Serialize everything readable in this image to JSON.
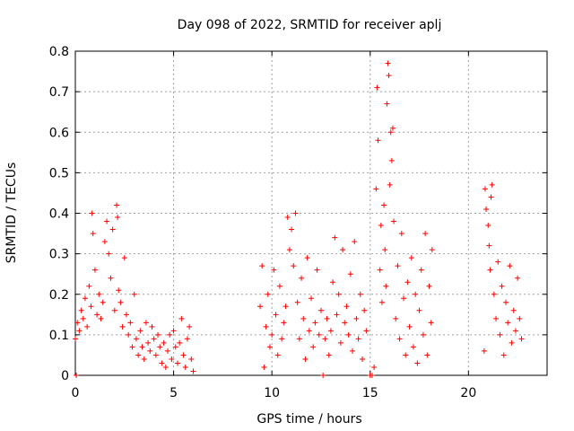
{
  "chart_data": {
    "type": "scatter",
    "title": "Day 098 of 2022, SRMTID for receiver aplj",
    "xlabel": "GPS time / hours",
    "ylabel": "SRMTID / TECUs",
    "xlim": [
      0,
      24
    ],
    "ylim": [
      0,
      0.8
    ],
    "xticks": [
      0,
      5,
      10,
      15,
      20
    ],
    "yticks": [
      0,
      0.1,
      0.2,
      0.3,
      0.4,
      0.5,
      0.6,
      0.7,
      0.8
    ],
    "xtick_labels": [
      "0",
      "5",
      "10",
      "15",
      "20"
    ],
    "ytick_labels": [
      "0",
      "0.1",
      "0.2",
      "0.3",
      "0.4",
      "0.5",
      "0.6",
      "0.7",
      "0.8"
    ],
    "grid": true,
    "marker": "plus",
    "color": "#ff0000",
    "series": [
      {
        "name": "SRMTID",
        "points": [
          [
            0.0,
            0.09
          ],
          [
            0.05,
            0.0
          ],
          [
            0.1,
            0.13
          ],
          [
            0.2,
            0.11
          ],
          [
            0.3,
            0.16
          ],
          [
            0.4,
            0.14
          ],
          [
            0.5,
            0.19
          ],
          [
            0.6,
            0.12
          ],
          [
            0.7,
            0.22
          ],
          [
            0.8,
            0.17
          ],
          [
            0.85,
            0.4
          ],
          [
            0.9,
            0.35
          ],
          [
            1.0,
            0.26
          ],
          [
            1.1,
            0.15
          ],
          [
            1.2,
            0.2
          ],
          [
            1.3,
            0.14
          ],
          [
            1.4,
            0.18
          ],
          [
            1.5,
            0.33
          ],
          [
            1.6,
            0.38
          ],
          [
            1.7,
            0.3
          ],
          [
            1.8,
            0.24
          ],
          [
            1.9,
            0.36
          ],
          [
            2.0,
            0.16
          ],
          [
            2.1,
            0.42
          ],
          [
            2.15,
            0.39
          ],
          [
            2.2,
            0.21
          ],
          [
            2.3,
            0.18
          ],
          [
            2.4,
            0.12
          ],
          [
            2.5,
            0.29
          ],
          [
            2.6,
            0.15
          ],
          [
            2.7,
            0.1
          ],
          [
            2.8,
            0.13
          ],
          [
            2.9,
            0.07
          ],
          [
            3.0,
            0.2
          ],
          [
            3.1,
            0.09
          ],
          [
            3.2,
            0.05
          ],
          [
            3.3,
            0.11
          ],
          [
            3.4,
            0.07
          ],
          [
            3.5,
            0.04
          ],
          [
            3.6,
            0.13
          ],
          [
            3.7,
            0.08
          ],
          [
            3.8,
            0.06
          ],
          [
            3.9,
            0.12
          ],
          [
            4.0,
            0.09
          ],
          [
            4.1,
            0.05
          ],
          [
            4.2,
            0.1
          ],
          [
            4.3,
            0.07
          ],
          [
            4.4,
            0.03
          ],
          [
            4.5,
            0.08
          ],
          [
            4.6,
            0.02
          ],
          [
            4.7,
            0.06
          ],
          [
            4.8,
            0.1
          ],
          [
            4.9,
            0.04
          ],
          [
            5.0,
            0.11
          ],
          [
            5.1,
            0.07
          ],
          [
            5.2,
            0.03
          ],
          [
            5.3,
            0.08
          ],
          [
            5.4,
            0.14
          ],
          [
            5.5,
            0.05
          ],
          [
            5.6,
            0.02
          ],
          [
            5.7,
            0.09
          ],
          [
            5.8,
            0.12
          ],
          [
            5.9,
            0.04
          ],
          [
            6.0,
            0.01
          ],
          [
            9.4,
            0.17
          ],
          [
            9.5,
            0.27
          ],
          [
            9.6,
            0.02
          ],
          [
            9.7,
            0.12
          ],
          [
            9.8,
            0.2
          ],
          [
            9.9,
            0.07
          ],
          [
            10.0,
            0.1
          ],
          [
            10.1,
            0.26
          ],
          [
            10.2,
            0.15
          ],
          [
            10.3,
            0.05
          ],
          [
            10.4,
            0.22
          ],
          [
            10.5,
            0.09
          ],
          [
            10.6,
            0.13
          ],
          [
            10.7,
            0.17
          ],
          [
            10.8,
            0.39
          ],
          [
            10.9,
            0.31
          ],
          [
            11.0,
            0.36
          ],
          [
            11.1,
            0.27
          ],
          [
            11.2,
            0.4
          ],
          [
            11.3,
            0.18
          ],
          [
            11.4,
            0.09
          ],
          [
            11.5,
            0.24
          ],
          [
            11.6,
            0.14
          ],
          [
            11.7,
            0.04
          ],
          [
            11.8,
            0.29
          ],
          [
            11.9,
            0.11
          ],
          [
            12.0,
            0.19
          ],
          [
            12.1,
            0.07
          ],
          [
            12.2,
            0.13
          ],
          [
            12.3,
            0.26
          ],
          [
            12.4,
            0.1
          ],
          [
            12.5,
            0.16
          ],
          [
            12.6,
            0.0
          ],
          [
            12.7,
            0.09
          ],
          [
            12.8,
            0.14
          ],
          [
            12.9,
            0.05
          ],
          [
            13.0,
            0.11
          ],
          [
            13.1,
            0.23
          ],
          [
            13.2,
            0.34
          ],
          [
            13.3,
            0.15
          ],
          [
            13.4,
            0.2
          ],
          [
            13.5,
            0.08
          ],
          [
            13.6,
            0.31
          ],
          [
            13.7,
            0.13
          ],
          [
            13.8,
            0.17
          ],
          [
            13.9,
            0.1
          ],
          [
            14.0,
            0.25
          ],
          [
            14.1,
            0.06
          ],
          [
            14.2,
            0.33
          ],
          [
            14.3,
            0.14
          ],
          [
            14.4,
            0.09
          ],
          [
            14.5,
            0.2
          ],
          [
            14.6,
            0.04
          ],
          [
            14.7,
            0.16
          ],
          [
            14.8,
            0.11
          ],
          [
            15.0,
            0.0
          ],
          [
            15.1,
            0.0
          ],
          [
            15.2,
            0.02
          ],
          [
            15.3,
            0.46
          ],
          [
            15.35,
            0.71
          ],
          [
            15.4,
            0.58
          ],
          [
            15.5,
            0.26
          ],
          [
            15.55,
            0.37
          ],
          [
            15.6,
            0.18
          ],
          [
            15.7,
            0.42
          ],
          [
            15.75,
            0.31
          ],
          [
            15.8,
            0.22
          ],
          [
            15.85,
            0.67
          ],
          [
            15.9,
            0.77
          ],
          [
            15.95,
            0.74
          ],
          [
            16.0,
            0.47
          ],
          [
            16.05,
            0.6
          ],
          [
            16.1,
            0.53
          ],
          [
            16.15,
            0.61
          ],
          [
            16.2,
            0.38
          ],
          [
            16.3,
            0.14
          ],
          [
            16.4,
            0.27
          ],
          [
            16.5,
            0.09
          ],
          [
            16.6,
            0.35
          ],
          [
            16.7,
            0.19
          ],
          [
            16.8,
            0.05
          ],
          [
            16.9,
            0.23
          ],
          [
            17.0,
            0.12
          ],
          [
            17.1,
            0.29
          ],
          [
            17.2,
            0.07
          ],
          [
            17.3,
            0.2
          ],
          [
            17.4,
            0.03
          ],
          [
            17.5,
            0.16
          ],
          [
            17.6,
            0.26
          ],
          [
            17.7,
            0.1
          ],
          [
            17.8,
            0.35
          ],
          [
            17.9,
            0.05
          ],
          [
            18.0,
            0.22
          ],
          [
            18.1,
            0.13
          ],
          [
            18.15,
            0.31
          ],
          [
            20.8,
            0.06
          ],
          [
            20.85,
            0.46
          ],
          [
            20.9,
            0.41
          ],
          [
            21.0,
            0.37
          ],
          [
            21.05,
            0.32
          ],
          [
            21.1,
            0.26
          ],
          [
            21.15,
            0.44
          ],
          [
            21.2,
            0.47
          ],
          [
            21.3,
            0.2
          ],
          [
            21.4,
            0.14
          ],
          [
            21.5,
            0.28
          ],
          [
            21.6,
            0.1
          ],
          [
            21.7,
            0.22
          ],
          [
            21.8,
            0.05
          ],
          [
            21.9,
            0.18
          ],
          [
            22.0,
            0.13
          ],
          [
            22.1,
            0.27
          ],
          [
            22.2,
            0.08
          ],
          [
            22.3,
            0.16
          ],
          [
            22.4,
            0.11
          ],
          [
            22.5,
            0.24
          ],
          [
            22.6,
            0.14
          ],
          [
            22.7,
            0.09
          ]
        ]
      }
    ]
  }
}
